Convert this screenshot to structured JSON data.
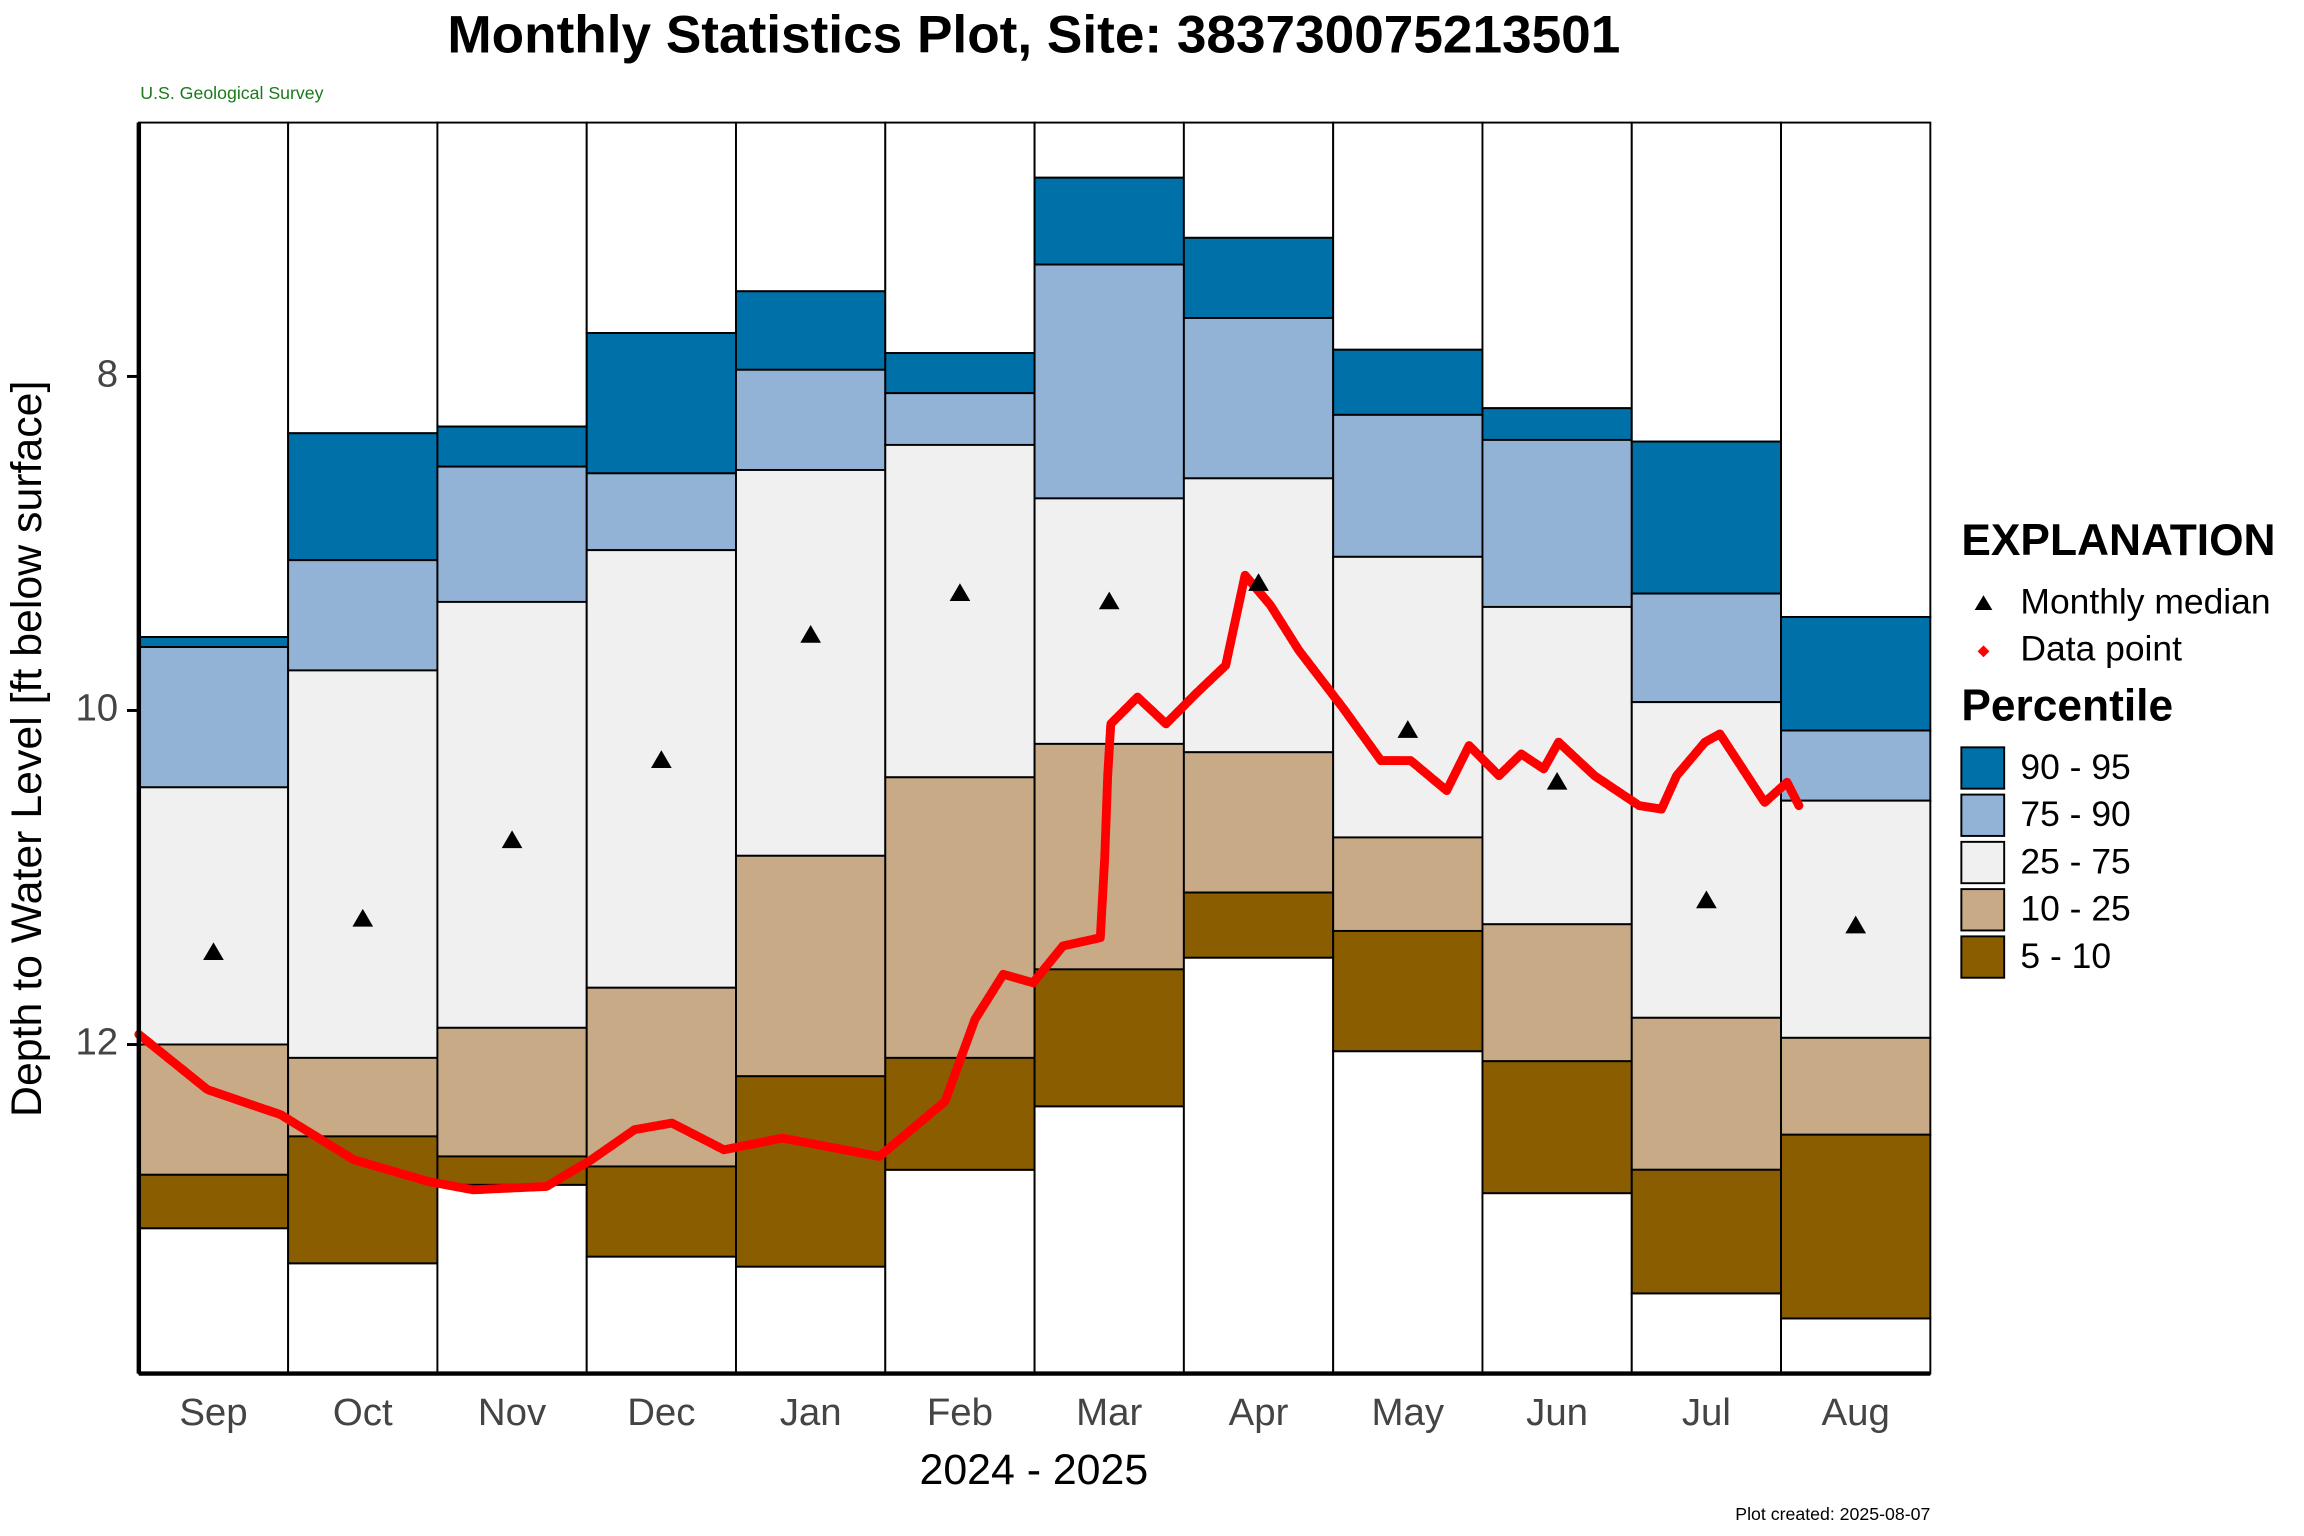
{
  "chart_data": {
    "type": "percentile_box",
    "title": "Monthly Statistics Plot, Site: 383730075213501",
    "subtitle": "U.S. Geological Survey",
    "y_label": "Depth to Water Level [ft below surface]",
    "x_label": "2024 - 2025",
    "note": "Plot created: 2025-08-07",
    "categories": [
      "Sep",
      "Oct",
      "Nov",
      "Dec",
      "Jan",
      "Feb",
      "Mar",
      "Apr",
      "May",
      "Jun",
      "Jul",
      "Aug"
    ],
    "ylim": [
      6.48,
      13.97
    ],
    "y_inverted": true,
    "yticks": [
      8,
      10,
      12
    ],
    "xlim": [
      0,
      12
    ],
    "levels": [
      [
        9.56,
        8.34,
        8.3,
        7.74,
        7.49,
        7.86,
        6.81,
        7.17,
        7.84,
        8.19,
        8.39,
        9.44
      ],
      [
        9.62,
        9.1,
        8.54,
        8.58,
        7.96,
        8.1,
        7.33,
        7.65,
        8.23,
        8.38,
        9.3,
        10.12
      ],
      [
        10.46,
        9.76,
        9.35,
        9.04,
        8.56,
        8.41,
        8.73,
        8.61,
        9.08,
        9.38,
        9.95,
        10.54
      ],
      [
        12.0,
        12.08,
        11.9,
        11.66,
        10.87,
        10.4,
        10.2,
        10.25,
        10.76,
        11.28,
        11.84,
        11.96
      ],
      [
        12.78,
        12.55,
        12.67,
        12.73,
        12.19,
        12.08,
        11.55,
        11.09,
        11.32,
        12.1,
        12.75,
        12.54
      ],
      [
        13.1,
        13.31,
        12.84,
        13.27,
        13.33,
        12.75,
        12.37,
        11.48,
        12.04,
        12.89,
        13.49,
        13.64
      ]
    ],
    "legend_title": "EXPLANATION",
    "band_title": "Percentile",
    "bands": [
      {
        "name": "90 - 95",
        "color": "#0070a8"
      },
      {
        "name": "75 - 90",
        "color": "#92b2d6"
      },
      {
        "name": "25 - 75",
        "color": "#f0f0f0"
      },
      {
        "name": "10 - 25",
        "color": "#c8aa86"
      },
      {
        "name": "5 - 10",
        "color": "#8a5e00"
      }
    ],
    "median": {
      "name": "Monthly median",
      "color": "#000000",
      "values": [
        11.45,
        11.25,
        10.78,
        10.3,
        9.55,
        9.3,
        9.35,
        9.24,
        10.12,
        10.43,
        11.14,
        11.29
      ]
    },
    "points": {
      "name": "Data point",
      "color": "#ff0000",
      "x": [
        0,
        0.46,
        0.95,
        1.44,
        1.94,
        2.24,
        2.73,
        3.03,
        3.32,
        3.57,
        3.92,
        4.31,
        4.96,
        5.4,
        5.6,
        5.79,
        5.99,
        6.19,
        6.44,
        6.47,
        6.49,
        6.51,
        6.69,
        6.88,
        7.08,
        7.28,
        7.41,
        7.58,
        7.77,
        8.07,
        8.32,
        8.52,
        8.76,
        8.91,
        9.11,
        9.26,
        9.41,
        9.51,
        9.75,
        10.05,
        10.2,
        10.3,
        10.49,
        10.59,
        10.89,
        11.04,
        11.12
      ],
      "values": [
        11.94,
        12.27,
        12.42,
        12.69,
        12.82,
        12.87,
        12.85,
        12.69,
        12.51,
        12.47,
        12.63,
        12.56,
        12.67,
        12.34,
        11.85,
        11.58,
        11.63,
        11.41,
        11.36,
        10.88,
        10.39,
        10.08,
        9.92,
        10.08,
        9.9,
        9.73,
        9.19,
        9.37,
        9.64,
        9.99,
        10.3,
        10.3,
        10.48,
        10.21,
        10.39,
        10.26,
        10.35,
        10.19,
        10.39,
        10.57,
        10.59,
        10.39,
        10.19,
        10.14,
        10.55,
        10.43,
        10.57
      ]
    }
  }
}
